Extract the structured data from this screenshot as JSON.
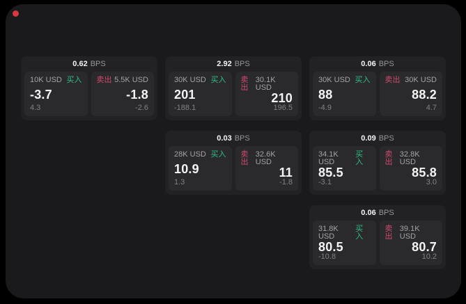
{
  "window": {
    "recording_dot": "red-dot"
  },
  "colors": {
    "outside": "#000000",
    "surface": "#1a1a1c",
    "card": "#222225",
    "panel": "#2a2a2d",
    "buy_green": "#2ebd85",
    "sell_red": "#d04a6b",
    "dot_red": "#d8383f"
  },
  "labels": {
    "buy": "买入",
    "sell": "卖出",
    "bps_unit": "BPS"
  },
  "cards": [
    {
      "row": 0,
      "col": 0,
      "bps": "0.62",
      "buy": {
        "amount": "10K USD",
        "price": "-3.7",
        "change": "4.3"
      },
      "sell": {
        "amount": "5.5K USD",
        "price": "-1.8",
        "change": "-2.6"
      }
    },
    {
      "row": 0,
      "col": 1,
      "bps": "2.92",
      "buy": {
        "amount": "30K USD",
        "price": "201",
        "change": "-188.1"
      },
      "sell": {
        "amount": "30.1K USD",
        "price": "210",
        "change": "196.5"
      }
    },
    {
      "row": 0,
      "col": 2,
      "bps": "0.06",
      "buy": {
        "amount": "30K USD",
        "price": "88",
        "change": "-4.9"
      },
      "sell": {
        "amount": "30K USD",
        "price": "88.2",
        "change": "4.7"
      }
    },
    {
      "row": 1,
      "col": 1,
      "bps": "0.03",
      "buy": {
        "amount": "28K USD",
        "price": "10.9",
        "change": "1.3"
      },
      "sell": {
        "amount": "32.6K USD",
        "price": "11",
        "change": "-1.8"
      }
    },
    {
      "row": 1,
      "col": 2,
      "bps": "0.09",
      "buy": {
        "amount": "34.1K USD",
        "price": "85.5",
        "change": "-3.1"
      },
      "sell": {
        "amount": "32.8K USD",
        "price": "85.8",
        "change": "3.0"
      }
    },
    {
      "row": 2,
      "col": 2,
      "bps": "0.06",
      "buy": {
        "amount": "31.8K USD",
        "price": "80.5",
        "change": "-10.8"
      },
      "sell": {
        "amount": "39.1K USD",
        "price": "80.7",
        "change": "10.2"
      }
    }
  ]
}
